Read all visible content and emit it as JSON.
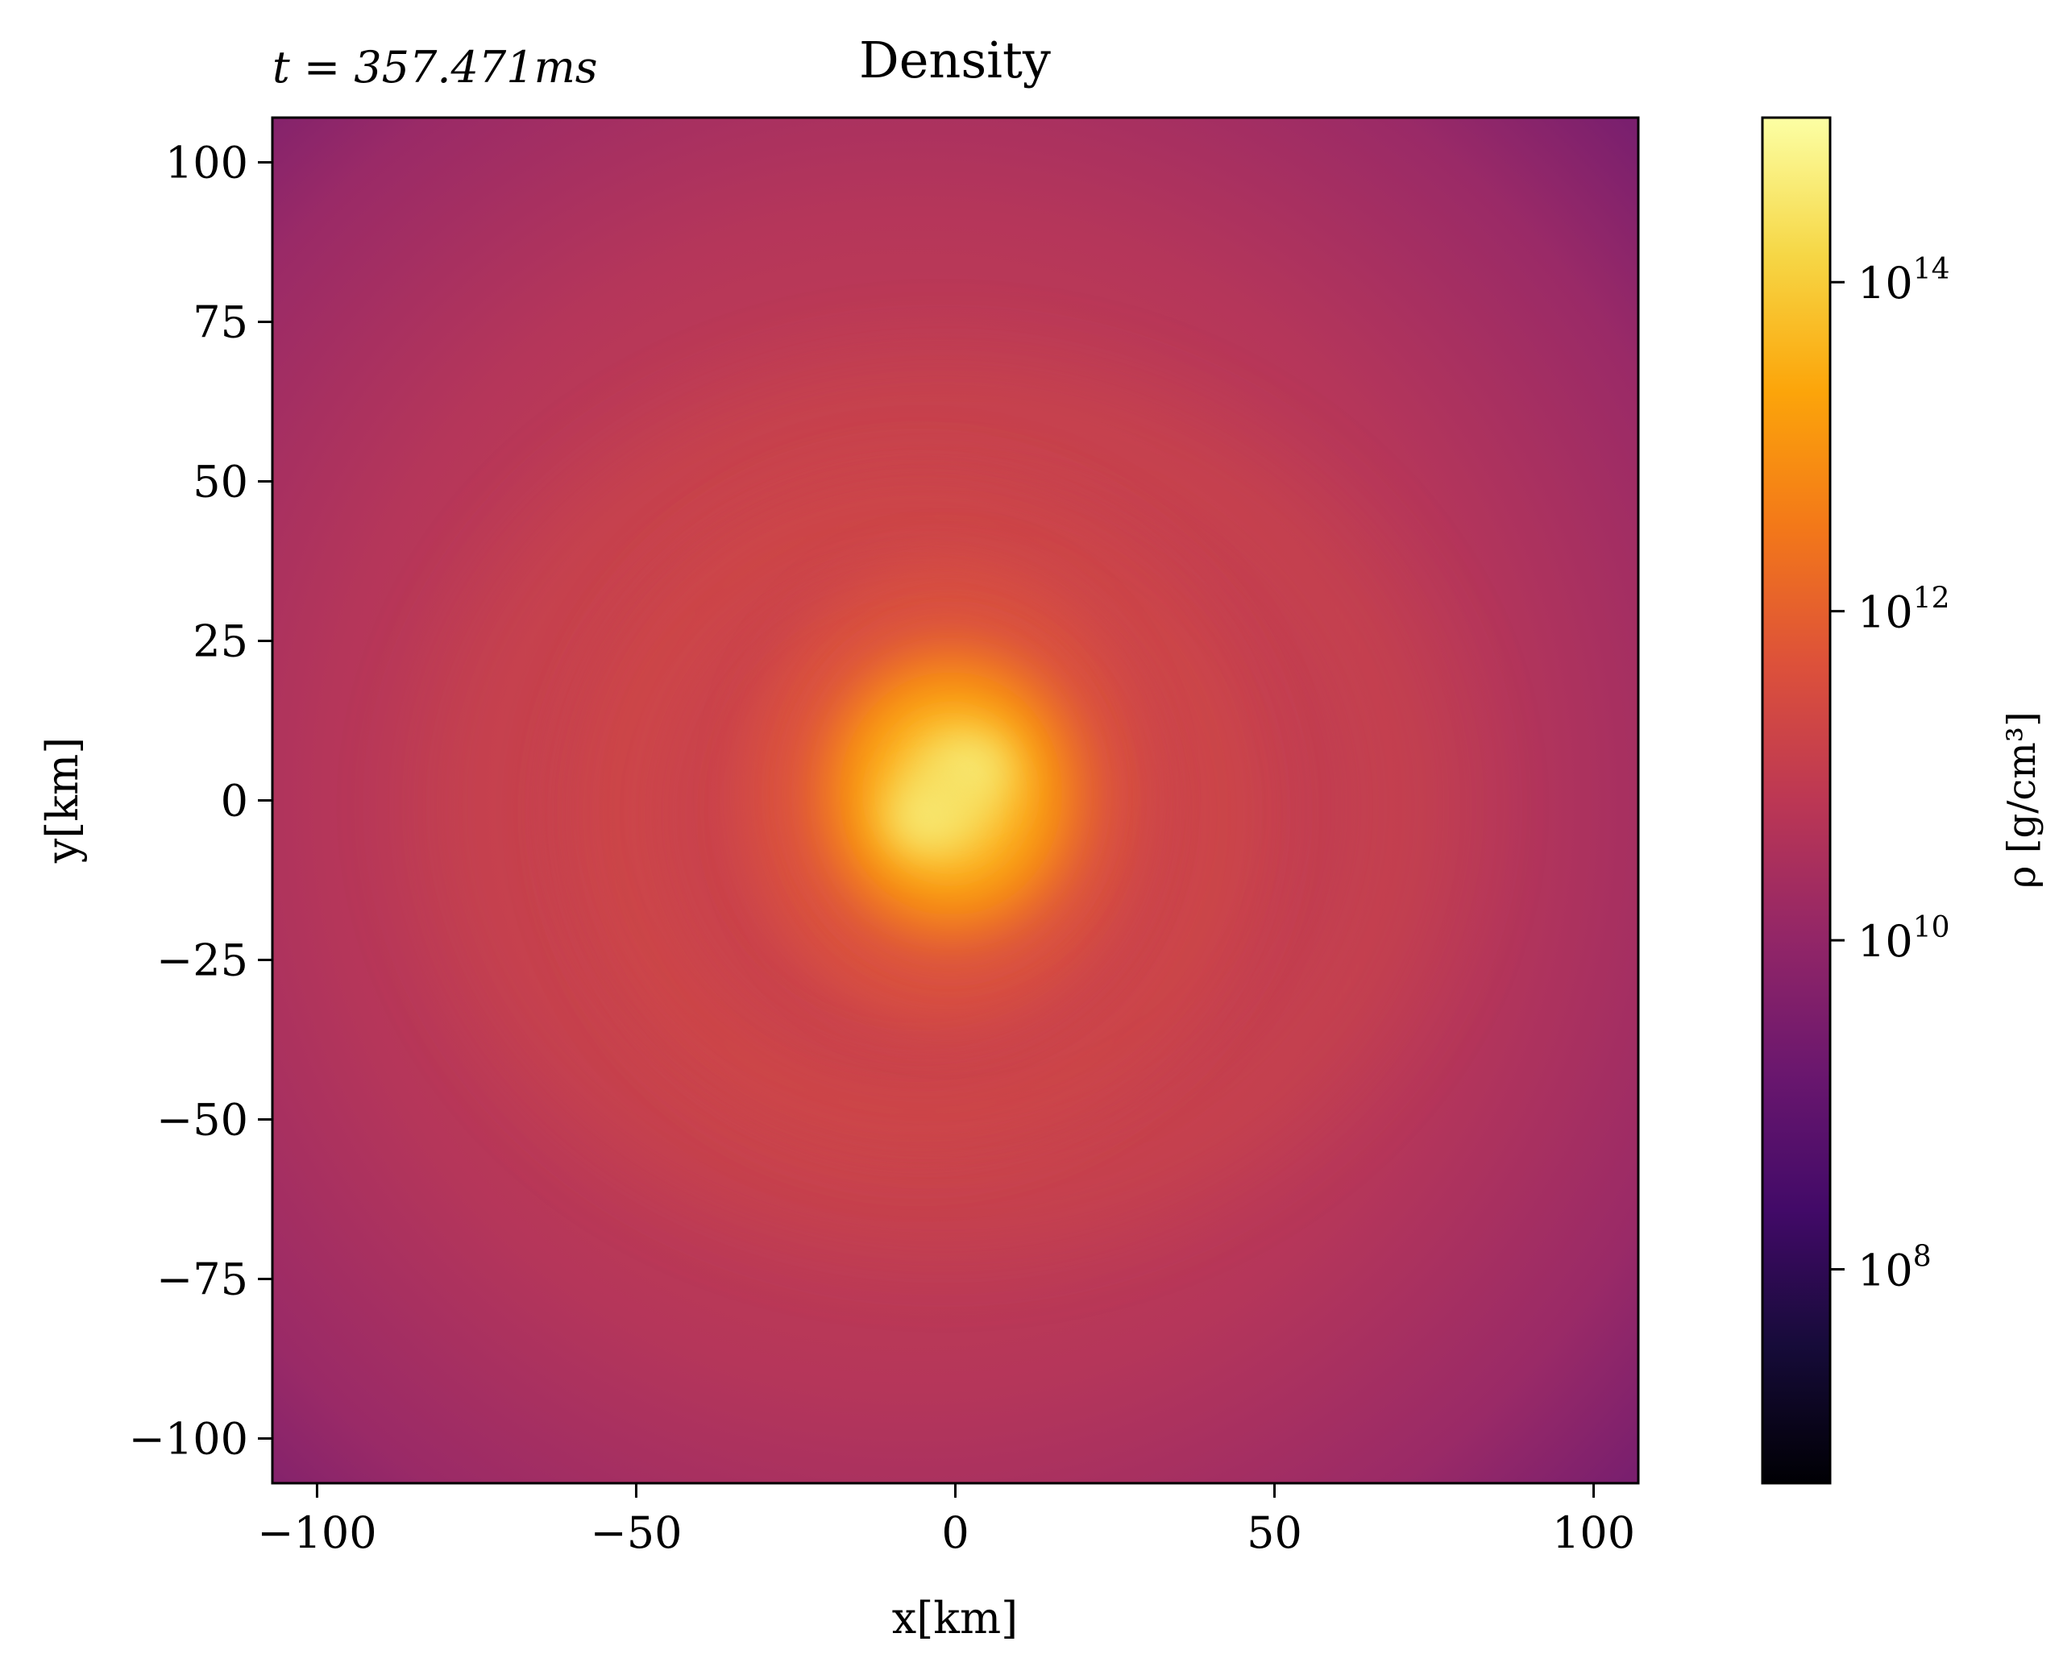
{
  "chart_data": {
    "type": "heatmap",
    "title": "Density",
    "annotation": "t = 357.471ms",
    "xlabel": "x[km]",
    "ylabel": "y[km]",
    "xlim": [
      -107,
      107
    ],
    "ylim": [
      -107,
      107
    ],
    "xticks": [
      -100,
      -50,
      0,
      50,
      100
    ],
    "yticks": [
      100,
      75,
      50,
      25,
      0,
      -25,
      -50,
      -75,
      -100
    ],
    "xtick_labels": [
      "−100",
      "−50",
      "0",
      "50",
      "100"
    ],
    "ytick_labels": [
      "100",
      "75",
      "50",
      "25",
      "0",
      "−25",
      "−50",
      "−75",
      "−100"
    ],
    "colormap": "inferno",
    "color_scale": "log",
    "colorbar": {
      "label": "ρ [g/cm³]",
      "range_log10": [
        6.7,
        15.0
      ],
      "ticks_log10": [
        8,
        10,
        12,
        14
      ],
      "tick_labels": [
        "10^8",
        "10^10",
        "10^12",
        "10^14"
      ]
    },
    "field": {
      "background_log10_rho": 10.8,
      "core_center_km": [
        0,
        0
      ],
      "core_peak_log10_rho": 14.8,
      "corner_min_log10_rho": 9.8
    },
    "colors": {
      "frame": "#000000",
      "core": "#f6f17f",
      "background": "#b5365a",
      "corner": "#7a1f6e"
    }
  }
}
